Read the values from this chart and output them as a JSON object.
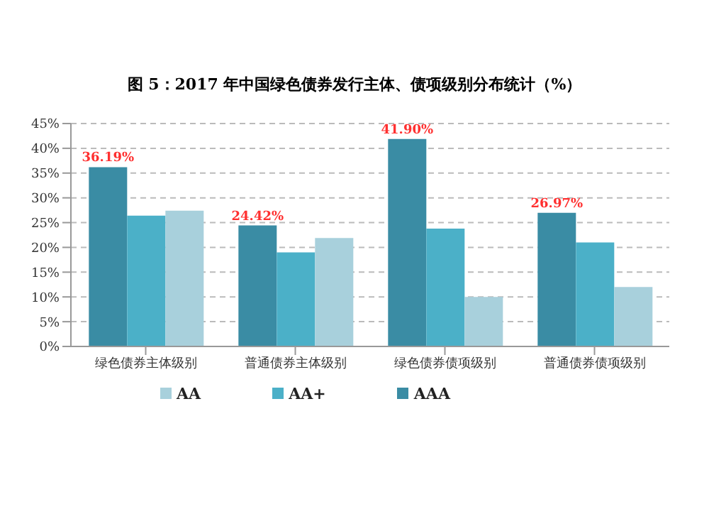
{
  "chart_data": {
    "type": "bar",
    "title": "图 5：2017 年中国绿色债券发行主体、债项级别分布统计（%）",
    "categories": [
      "绿色债券主体级别",
      "普通债券主体级别",
      "绿色债券债项级别",
      "普通债券债项级别"
    ],
    "series": [
      {
        "name": "AAA",
        "color": "#3a8ca4",
        "values": [
          36.19,
          24.42,
          41.9,
          26.97
        ],
        "value_labels": [
          "36.19%",
          "24.42%",
          "41.90%",
          "26.97%"
        ]
      },
      {
        "name": "AA+",
        "color": "#4bb0c8",
        "values": [
          26.4,
          19,
          23.8,
          21
        ]
      },
      {
        "name": "AA",
        "color": "#a8d0dc",
        "values": [
          27.4,
          21.9,
          10,
          12
        ]
      }
    ],
    "ylim": [
      0,
      45
    ],
    "yticks": [
      {
        "value": 0,
        "label": "0%"
      },
      {
        "value": 5,
        "label": "5%"
      },
      {
        "value": 10,
        "label": "10%"
      },
      {
        "value": 15,
        "label": "15%"
      },
      {
        "value": 20,
        "label": "20%"
      },
      {
        "value": 25,
        "label": "25%"
      },
      {
        "value": 30,
        "label": "30%"
      },
      {
        "value": 35,
        "label": "35%"
      },
      {
        "value": 40,
        "label": "40%"
      },
      {
        "value": 45,
        "label": "45%"
      }
    ],
    "grid": "y",
    "legend": "bottom"
  }
}
